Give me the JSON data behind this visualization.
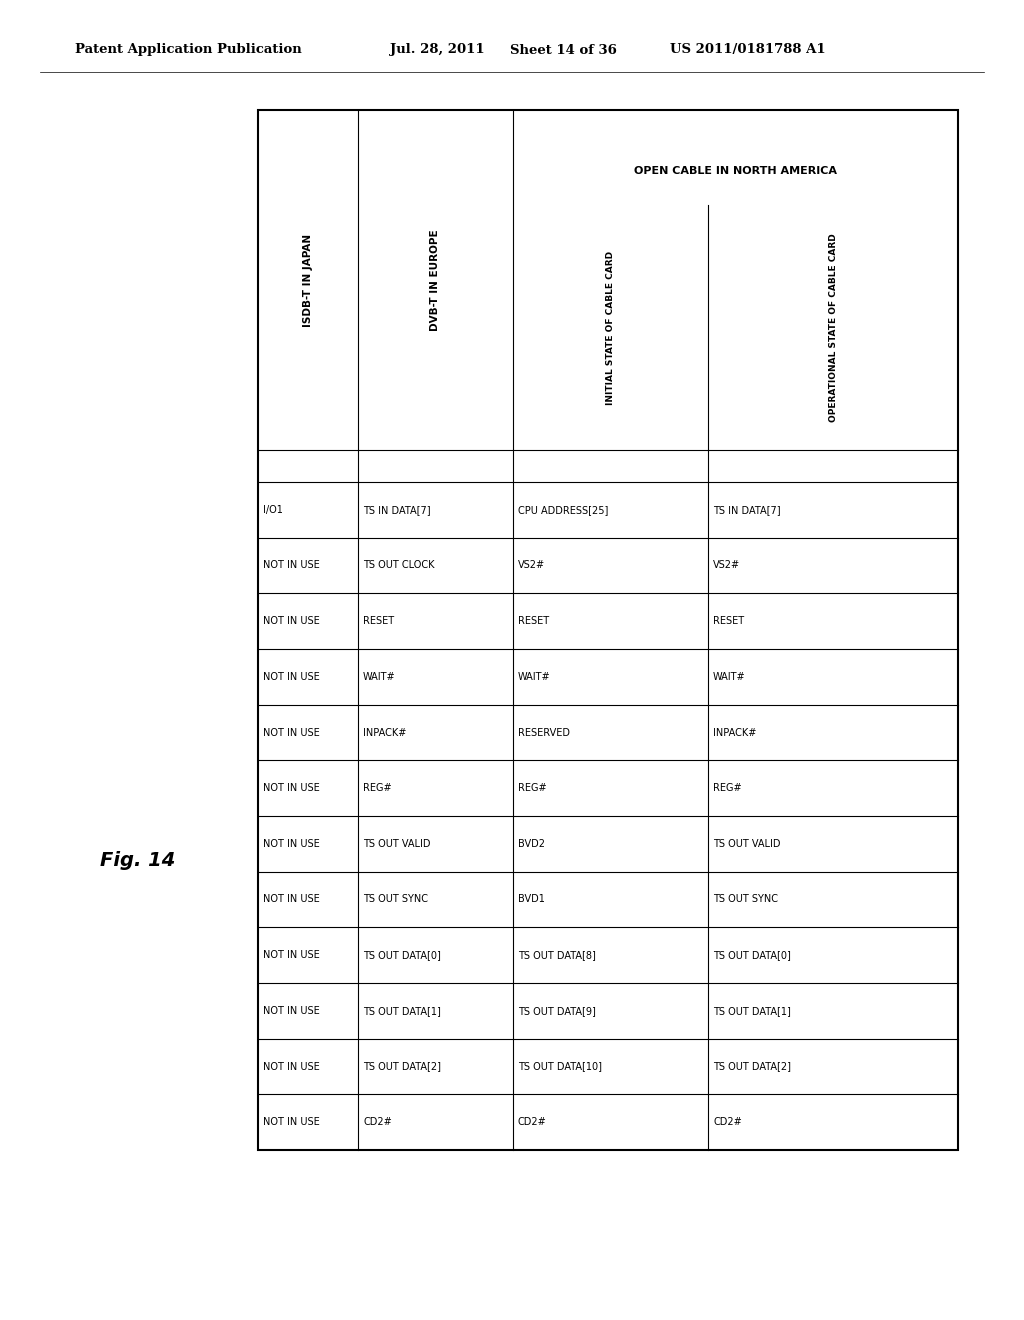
{
  "header_line1": "Patent Application Publication",
  "header_date": "Jul. 28, 2011",
  "header_sheet": "Sheet 14 of 36",
  "header_patent": "US 2011/0181788 A1",
  "fig_label": "Fig. 14",
  "rows": [
    [
      "I/O1",
      "TS IN DATA[7]",
      "CPU ADDRESS[25]",
      "TS IN DATA[7]"
    ],
    [
      "NOT IN USE",
      "TS OUT CLOCK",
      "VS2#",
      "VS2#"
    ],
    [
      "NOT IN USE",
      "RESET",
      "RESET",
      "RESET"
    ],
    [
      "NOT IN USE",
      "WAIT#",
      "WAIT#",
      "WAIT#"
    ],
    [
      "NOT IN USE",
      "INPACK#",
      "RESERVED",
      "INPACK#"
    ],
    [
      "NOT IN USE",
      "REG#",
      "REG#",
      "REG#"
    ],
    [
      "NOT IN USE",
      "TS OUT VALID",
      "BVD2",
      "TS OUT VALID"
    ],
    [
      "NOT IN USE",
      "TS OUT SYNC",
      "BVD1",
      "TS OUT SYNC"
    ],
    [
      "NOT IN USE",
      "TS OUT DATA[0]",
      "TS OUT DATA[8]",
      "TS OUT DATA[0]"
    ],
    [
      "NOT IN USE",
      "TS OUT DATA[1]",
      "TS OUT DATA[9]",
      "TS OUT DATA[1]"
    ],
    [
      "NOT IN USE",
      "TS OUT DATA[2]",
      "TS OUT DATA[10]",
      "TS OUT DATA[2]"
    ],
    [
      "NOT IN USE",
      "CD2#",
      "CD2#",
      "CD2#"
    ]
  ],
  "col0_header": "ISDB-T IN JAPAN",
  "col1_header": "DVB-T IN EUROPE",
  "col2_group_header": "OPEN CABLE IN NORTH AMERICA",
  "col2_header": "INITIAL STATE OF CABLE CARD",
  "col3_header": "OPERATIONAL STATE OF CABLE CARD",
  "background_color": "#ffffff",
  "text_color": "#000000",
  "font_size_patent": 9.5,
  "font_size_col_header": 7.5,
  "font_size_group_header": 8.0,
  "font_size_subheader": 6.5,
  "font_size_data": 7.0
}
